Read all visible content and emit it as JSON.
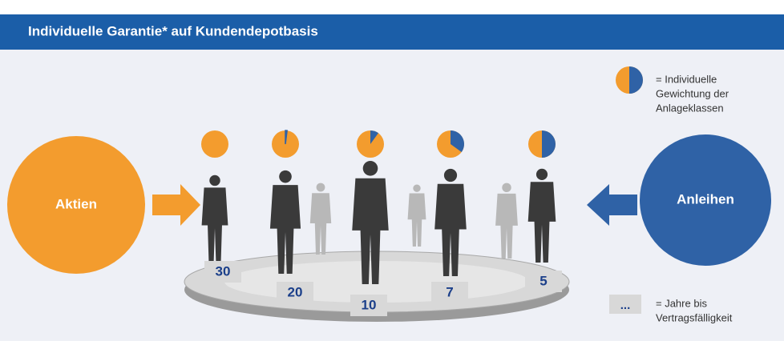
{
  "header": {
    "title": "Individuelle Garantie* auf Kundendepotbasis"
  },
  "left": {
    "label": "Aktien",
    "color": "#f39c2e"
  },
  "right": {
    "label": "Anleihen",
    "color": "#2f62a6"
  },
  "legend_pie": {
    "share": 50,
    "lines": [
      "= Individuelle",
      "Gewichtung der",
      "Anlageklassen"
    ]
  },
  "legend_box": {
    "symbol": "...",
    "lines": [
      "= Jahre bis",
      "Vertragsfälligkeit"
    ]
  },
  "groups": [
    {
      "years": 30,
      "share": 0
    },
    {
      "years": 20,
      "share": 2
    },
    {
      "years": 10,
      "share": 10
    },
    {
      "years": 7,
      "share": 35
    },
    {
      "years": 5,
      "share": 50
    }
  ]
}
